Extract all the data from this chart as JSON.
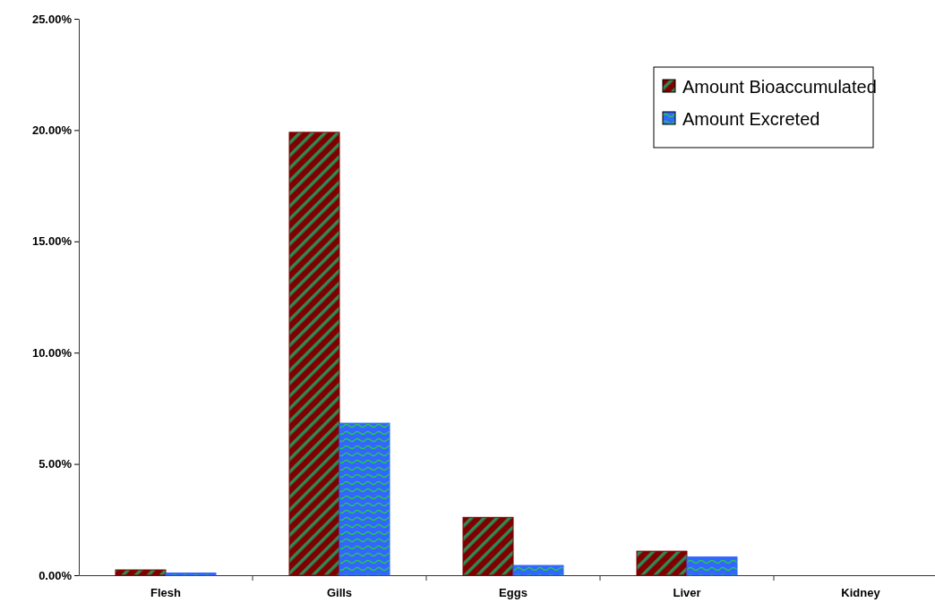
{
  "chart_data": {
    "type": "bar",
    "categories": [
      "Flesh",
      "Gills",
      "Eggs",
      "Liver",
      "Kidney"
    ],
    "series": [
      {
        "name": "Amount Bioaccumulated",
        "color": "#800000",
        "values": [
          0.24,
          19.9,
          2.6,
          1.08,
          0
        ]
      },
      {
        "name": "Amount Excreted",
        "color": "#3366ff",
        "values": [
          0.1,
          6.83,
          0.44,
          0.82,
          0
        ]
      }
    ],
    "ylim": [
      0,
      25
    ],
    "yticks": [
      {
        "value": 0,
        "label": "0.00%"
      },
      {
        "value": 5,
        "label": "5.00%"
      },
      {
        "value": 10,
        "label": "10.00%"
      },
      {
        "value": 15,
        "label": "15.00%"
      },
      {
        "value": 20,
        "label": "20.00%"
      },
      {
        "value": 25,
        "label": "25.00%"
      }
    ],
    "grid": false,
    "legend": "top right"
  }
}
